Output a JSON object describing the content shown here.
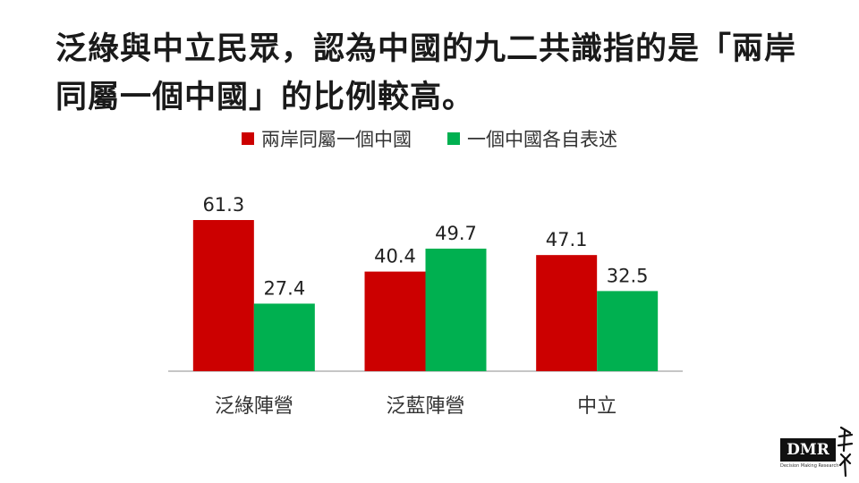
{
  "title": "泛綠與中立民眾，認為中國的九二共識指的是「兩岸同屬一個中國」的比例較高。",
  "colors": {
    "series1": "#cc0000",
    "series2": "#00b050",
    "axis": "#b3b3b3"
  },
  "logo": {
    "text": "DMR",
    "subtext": "Decision Making Research"
  },
  "chart_data": {
    "type": "bar",
    "categories": [
      "泛綠陣營",
      "泛藍陣營",
      "中立"
    ],
    "series": [
      {
        "name": "兩岸同屬一個中國",
        "values": [
          61.3,
          40.4,
          47.1
        ]
      },
      {
        "name": "一個中國各自表述",
        "values": [
          27.4,
          49.7,
          32.5
        ]
      }
    ],
    "ylim": [
      0,
      80
    ],
    "grid": false,
    "legend": "top-center",
    "data_labels": true
  }
}
